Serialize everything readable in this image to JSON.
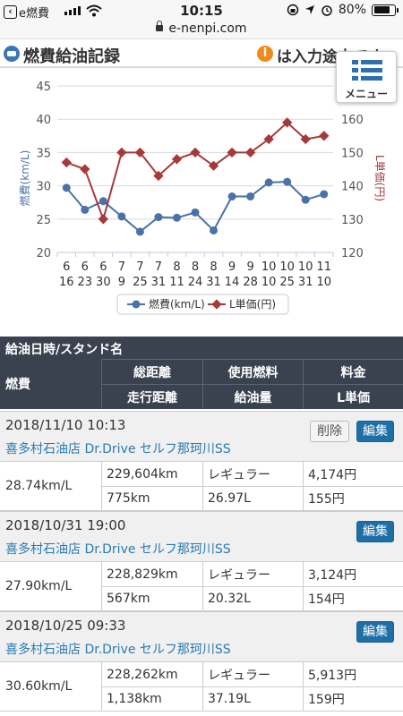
{
  "status_bar": {
    "back_app": "e燃費",
    "time": "10:15",
    "battery": "80%",
    "battery_level": 0.8
  },
  "url": "e-nenpi.com",
  "header": {
    "title": "燃費給油記録",
    "notice": "は入力途中です"
  },
  "menu": {
    "label": "メニュー"
  },
  "chart_data": {
    "type": "line",
    "categories": [
      "6/16",
      "6/23",
      "6/30",
      "7/9",
      "7/25",
      "7/31",
      "8/11",
      "8/24",
      "8/31",
      "9/14",
      "9/28",
      "10/10",
      "10/25",
      "10/31",
      "11/10"
    ],
    "x_tick_top": [
      "6",
      "6",
      "6",
      "7",
      "7",
      "7",
      "8",
      "8",
      "8",
      "9",
      "9",
      "10",
      "10",
      "10",
      "11"
    ],
    "x_tick_bottom": [
      "16",
      "23",
      "30",
      "9",
      "25",
      "31",
      "11",
      "24",
      "31",
      "14",
      "28",
      "10",
      "25",
      "31",
      "10"
    ],
    "series": [
      {
        "name": "燃費(km/L)",
        "axis": "left",
        "color": "#4a72a8",
        "values": [
          29.7,
          26.4,
          27.7,
          25.4,
          23.1,
          25.3,
          25.2,
          26.0,
          23.3,
          28.4,
          28.4,
          30.5,
          30.6,
          27.9,
          28.74
        ]
      },
      {
        "name": "L単価(円)",
        "axis": "right",
        "color": "#a63a3a",
        "values": [
          147,
          145,
          130,
          150,
          150,
          143,
          148,
          150,
          146,
          150,
          150,
          154,
          159,
          154,
          155
        ]
      }
    ],
    "ylabel": "燃費(km/L)",
    "y2label": "L単価(円)",
    "ylim": [
      20,
      45
    ],
    "y_ticks": [
      20,
      25,
      30,
      35,
      40,
      45
    ],
    "y2lim": [
      120,
      170
    ],
    "y2_ticks": [
      120,
      130,
      140,
      150,
      160
    ],
    "grid": true,
    "legend": "bottom"
  },
  "table": {
    "title": "給油日時/スタンド名",
    "headers": {
      "fuel_economy": "燃費",
      "total_distance": "総距離",
      "fuel_type": "使用燃料",
      "cost": "料金",
      "trip_distance": "走行距離",
      "amount": "給油量",
      "unit_price": "L単価"
    },
    "edit_label": "編集",
    "delete_label": "削除",
    "entries": [
      {
        "datetime": "2018/11/10 10:13",
        "station": "喜多村石油店 Dr.Drive セルフ那珂川SS",
        "fuel_economy": "28.74km/L",
        "total_distance": "229,604km",
        "fuel_type": "レギュラー",
        "cost": "4,174円",
        "trip_distance": "775km",
        "amount": "26.97L",
        "unit_price": "155円"
      },
      {
        "datetime": "2018/10/31 19:00",
        "station": "喜多村石油店 Dr.Drive セルフ那珂川SS",
        "fuel_economy": "27.90km/L",
        "total_distance": "228,829km",
        "fuel_type": "レギュラー",
        "cost": "3,124円",
        "trip_distance": "567km",
        "amount": "20.32L",
        "unit_price": "154円"
      },
      {
        "datetime": "2018/10/25 09:33",
        "station": "喜多村石油店 Dr.Drive セルフ那珂川SS",
        "fuel_economy": "30.60km/L",
        "total_distance": "228,262km",
        "fuel_type": "レギュラー",
        "cost": "5,913円",
        "trip_distance": "1,138km",
        "amount": "37.19L",
        "unit_price": "159円"
      }
    ]
  }
}
